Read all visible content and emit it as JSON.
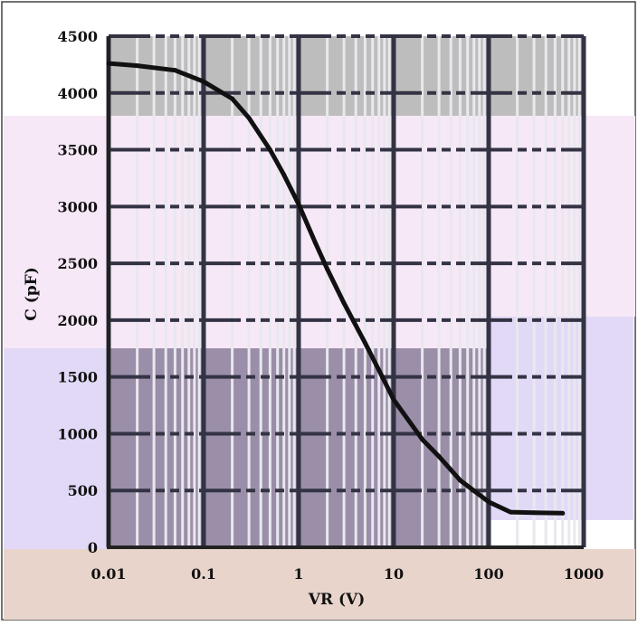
{
  "chart_data": {
    "type": "line",
    "xscale": "log",
    "xlabel": "VR (V)",
    "ylabel": "C (pF)",
    "xlim": [
      0.01,
      1000
    ],
    "ylim": [
      0,
      4500
    ],
    "grid": true,
    "x_ticks": [
      "0.01",
      "0.1",
      "1",
      "10",
      "100",
      "1000"
    ],
    "y_ticks": [
      "0",
      "500",
      "1000",
      "1500",
      "2000",
      "2500",
      "3000",
      "3500",
      "4000",
      "4500"
    ],
    "series": [
      {
        "x": [
          0.01,
          0.02,
          0.05,
          0.1,
          0.2,
          0.3,
          0.5,
          0.7,
          1,
          1.5,
          2,
          3,
          5,
          7,
          10,
          20,
          30,
          50,
          100,
          170,
          300,
          600
        ],
        "y": [
          4260,
          4240,
          4200,
          4100,
          3950,
          3780,
          3500,
          3280,
          3020,
          2680,
          2450,
          2150,
          1800,
          1560,
          1300,
          950,
          800,
          590,
          400,
          310,
          305,
          300
        ]
      }
    ],
    "colors": {
      "line": "#111111",
      "grid": "#333344",
      "top_band": "#b9b9b9",
      "pink_band": "#f4e6f4",
      "lavender_band": "#e4dcf6",
      "dark_band": "#9a8ca6",
      "bottom_band": "#e6d2c8"
    }
  }
}
